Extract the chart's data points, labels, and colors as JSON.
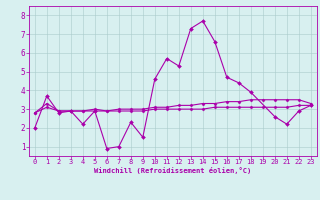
{
  "x_vals": [
    0,
    1,
    2,
    3,
    4,
    5,
    6,
    7,
    8,
    9,
    10,
    11,
    12,
    13,
    14,
    15,
    16,
    17,
    18,
    19,
    20,
    21,
    22,
    23
  ],
  "line1_y": [
    2.0,
    3.7,
    2.8,
    2.9,
    2.2,
    2.9,
    0.9,
    1.0,
    2.3,
    1.5,
    4.6,
    5.7,
    5.3,
    7.3,
    7.7,
    6.6,
    4.7,
    4.4,
    3.9,
    null,
    2.6,
    2.2,
    2.9,
    3.2
  ],
  "line2_y": [
    2.8,
    3.3,
    2.9,
    2.9,
    2.9,
    3.0,
    2.9,
    3.0,
    3.0,
    3.0,
    3.1,
    3.1,
    3.2,
    3.2,
    3.3,
    3.3,
    3.4,
    3.4,
    3.5,
    3.5,
    3.5,
    3.5,
    3.5,
    3.3
  ],
  "line3_y": [
    2.8,
    3.1,
    2.9,
    2.9,
    2.9,
    2.9,
    2.9,
    2.9,
    2.9,
    2.9,
    3.0,
    3.0,
    3.0,
    3.0,
    3.0,
    3.1,
    3.1,
    3.1,
    3.1,
    3.1,
    3.1,
    3.1,
    3.2,
    3.2
  ],
  "line_color": "#aa00aa",
  "bg_color": "#d8f0f0",
  "grid_color": "#aacccc",
  "tick_color": "#aa00aa",
  "xlabel": "Windchill (Refroidissement éolien,°C)",
  "ylim": [
    0.5,
    8.5
  ],
  "xlim": [
    -0.5,
    23.5
  ],
  "yticks": [
    1,
    2,
    3,
    4,
    5,
    6,
    7,
    8
  ],
  "xticks": [
    0,
    1,
    2,
    3,
    4,
    5,
    6,
    7,
    8,
    9,
    10,
    11,
    12,
    13,
    14,
    15,
    16,
    17,
    18,
    19,
    20,
    21,
    22,
    23
  ],
  "tick_fontsize": 5,
  "xlabel_fontsize": 5,
  "lw": 0.8,
  "marker_size": 2.0
}
